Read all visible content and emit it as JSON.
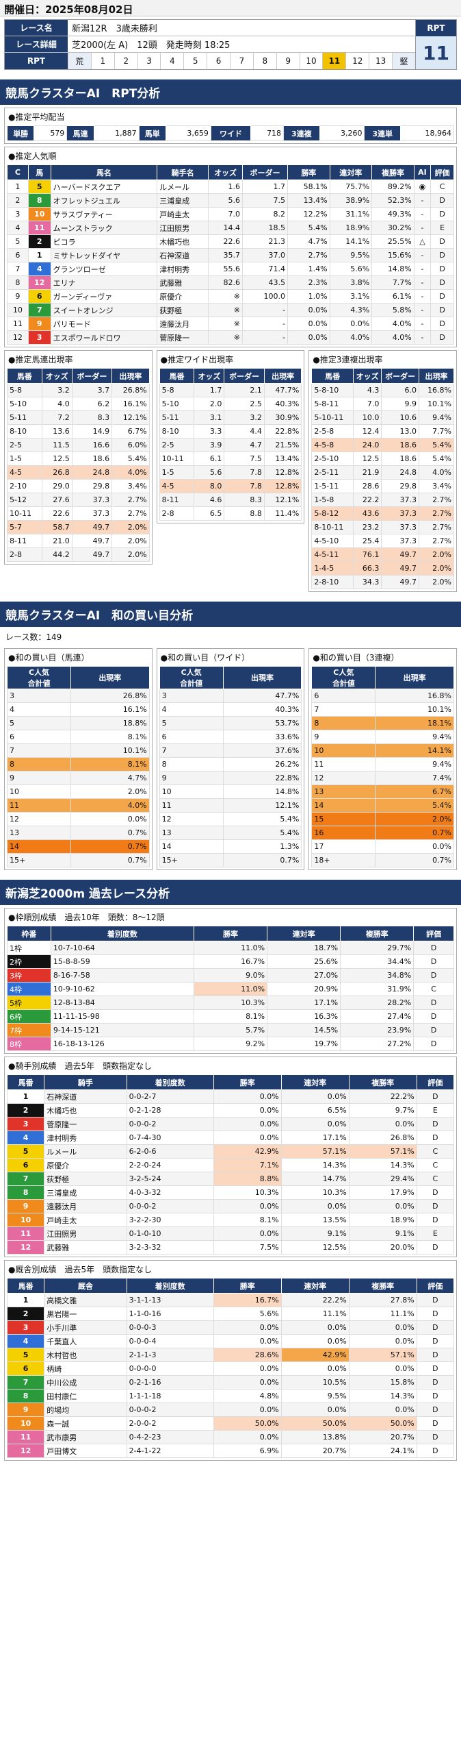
{
  "date_label": "開催日：2025年08月02日",
  "race": {
    "name_label": "レース名",
    "name": "新潟12R　3歳未勝利",
    "detail_label": "レース詳細",
    "detail": "芝2000(左 A)　12頭　発走時刻 18:25",
    "rpt_label": "RPT",
    "rpt_side_label": "RPT",
    "rpt_value": "11",
    "rpt_scale": [
      "荒",
      "1",
      "2",
      "3",
      "4",
      "5",
      "6",
      "7",
      "8",
      "9",
      "10",
      "11",
      "12",
      "13",
      "堅"
    ],
    "rpt_selected": "11"
  },
  "s1": {
    "title": "競馬クラスターAI　RPT分析",
    "payout_title": "●推定平均配当",
    "payout": [
      [
        "単勝",
        "579"
      ],
      [
        "馬連",
        "1,887"
      ],
      [
        "馬単",
        "3,659"
      ],
      [
        "ワイド",
        "718"
      ],
      [
        "3連複",
        "3,260"
      ],
      [
        "3連単",
        "18,964"
      ]
    ],
    "pop_title": "●推定人気順",
    "pop_headers": [
      "C",
      "馬",
      "馬名",
      "騎手名",
      "オッズ",
      "ボーダー",
      "勝率",
      "連対率",
      "複勝率",
      "AI",
      "評価"
    ],
    "pop_rows": [
      [
        "1",
        "5",
        "ハーバードスクエア",
        "ルメール",
        "1.6",
        "1.7",
        "58.1%",
        "75.7%",
        "89.2%",
        "◉",
        "C"
      ],
      [
        "2",
        "8",
        "オフレットジュエル",
        "三浦皇成",
        "5.6",
        "7.5",
        "13.4%",
        "38.9%",
        "52.3%",
        "-",
        "D"
      ],
      [
        "3",
        "10",
        "サラスヴァティー",
        "戸崎圭太",
        "7.0",
        "8.2",
        "12.2%",
        "31.1%",
        "49.3%",
        "-",
        "D"
      ],
      [
        "4",
        "11",
        "ムーンストラック",
        "江田照男",
        "14.4",
        "18.5",
        "5.4%",
        "18.9%",
        "30.2%",
        "-",
        "E"
      ],
      [
        "5",
        "2",
        "ピコラ",
        "木幡巧也",
        "22.6",
        "21.3",
        "4.7%",
        "14.1%",
        "25.5%",
        "△",
        "D"
      ],
      [
        "6",
        "1",
        "ミサトレッドダイヤ",
        "石神深道",
        "35.7",
        "37.0",
        "2.7%",
        "9.5%",
        "15.6%",
        "-",
        "D"
      ],
      [
        "7",
        "4",
        "グランツローゼ",
        "津村明秀",
        "55.6",
        "71.4",
        "1.4%",
        "5.6%",
        "14.8%",
        "-",
        "D"
      ],
      [
        "8",
        "12",
        "エリナ",
        "武藤雅",
        "82.6",
        "43.5",
        "2.3%",
        "3.8%",
        "7.7%",
        "-",
        "D"
      ],
      [
        "9",
        "6",
        "ガーンディーヴァ",
        "原優介",
        "※",
        "100.0",
        "1.0%",
        "3.1%",
        "6.1%",
        "-",
        "D"
      ],
      [
        "10",
        "7",
        "スイートオレンジ",
        "荻野極",
        "※",
        "-",
        "0.0%",
        "4.3%",
        "5.8%",
        "-",
        "D"
      ],
      [
        "11",
        "9",
        "パリモード",
        "遠藤汰月",
        "※",
        "-",
        "0.0%",
        "0.0%",
        "4.0%",
        "-",
        "D"
      ],
      [
        "12",
        "3",
        "エスポワールドロワ",
        "菅原隆一",
        "※",
        "-",
        "0.0%",
        "4.0%",
        "4.0%",
        "-",
        "D"
      ]
    ],
    "t_umaren": {
      "title": "●推定馬連出現率",
      "headers": [
        "馬番",
        "オッズ",
        "ボーダー",
        "出現率"
      ],
      "rows": [
        [
          "5-8",
          "3.2",
          "3.7",
          "26.8%"
        ],
        [
          "5-10",
          "4.0",
          "6.2",
          "16.1%"
        ],
        [
          "5-11",
          "7.2",
          "8.3",
          "12.1%"
        ],
        [
          "8-10",
          "13.6",
          "14.9",
          "6.7%"
        ],
        [
          "2-5",
          "11.5",
          "16.6",
          "6.0%"
        ],
        [
          "1-5",
          "12.5",
          "18.6",
          "5.4%"
        ],
        [
          "4-5",
          "26.8",
          "24.8",
          "4.0%"
        ],
        [
          "2-10",
          "29.0",
          "29.8",
          "3.4%"
        ],
        [
          "5-12",
          "27.6",
          "37.3",
          "2.7%"
        ],
        [
          "10-11",
          "22.6",
          "37.3",
          "2.7%"
        ],
        [
          "5-7",
          "58.7",
          "49.7",
          "2.0%"
        ],
        [
          "8-11",
          "21.0",
          "49.7",
          "2.0%"
        ],
        [
          "2-8",
          "44.2",
          "49.7",
          "2.0%"
        ]
      ]
    },
    "t_wide": {
      "title": "●推定ワイド出現率",
      "headers": [
        "馬番",
        "オッズ",
        "ボーダー",
        "出現率"
      ],
      "rows": [
        [
          "5-8",
          "1.7",
          "2.1",
          "47.7%"
        ],
        [
          "5-10",
          "2.0",
          "2.5",
          "40.3%"
        ],
        [
          "5-11",
          "3.1",
          "3.2",
          "30.9%"
        ],
        [
          "8-10",
          "3.3",
          "4.4",
          "22.8%"
        ],
        [
          "2-5",
          "3.9",
          "4.7",
          "21.5%"
        ],
        [
          "10-11",
          "6.1",
          "7.5",
          "13.4%"
        ],
        [
          "1-5",
          "5.6",
          "7.8",
          "12.8%"
        ],
        [
          "4-5",
          "8.0",
          "7.8",
          "12.8%"
        ],
        [
          "8-11",
          "4.6",
          "8.3",
          "12.1%"
        ],
        [
          "2-8",
          "6.5",
          "8.8",
          "11.4%"
        ]
      ]
    },
    "t_trio": {
      "title": "●推定3連複出現率",
      "headers": [
        "馬番",
        "オッズ",
        "ボーダー",
        "出現率"
      ],
      "rows": [
        [
          "5-8-10",
          "4.3",
          "6.0",
          "16.8%"
        ],
        [
          "5-8-11",
          "7.0",
          "9.9",
          "10.1%"
        ],
        [
          "5-10-11",
          "10.0",
          "10.6",
          "9.4%"
        ],
        [
          "2-5-8",
          "12.4",
          "13.0",
          "7.7%"
        ],
        [
          "4-5-8",
          "24.0",
          "18.6",
          "5.4%"
        ],
        [
          "2-5-10",
          "12.5",
          "18.6",
          "5.4%"
        ],
        [
          "2-5-11",
          "21.9",
          "24.8",
          "4.0%"
        ],
        [
          "1-5-11",
          "28.6",
          "29.8",
          "3.4%"
        ],
        [
          "1-5-8",
          "22.2",
          "37.3",
          "2.7%"
        ],
        [
          "5-8-12",
          "43.6",
          "37.3",
          "2.7%"
        ],
        [
          "8-10-11",
          "23.2",
          "37.3",
          "2.7%"
        ],
        [
          "4-5-10",
          "25.4",
          "37.3",
          "2.7%"
        ],
        [
          "4-5-11",
          "76.1",
          "49.7",
          "2.0%"
        ],
        [
          "1-4-5",
          "66.3",
          "49.7",
          "2.0%"
        ],
        [
          "2-8-10",
          "34.3",
          "49.7",
          "2.0%"
        ]
      ]
    }
  },
  "s2": {
    "title": "競馬クラスターAI　和の買い目分析",
    "count": "レース数：149",
    "t1": {
      "title": "●和の買い目（馬連）",
      "headers": [
        "C人気\n合計値",
        "出現率"
      ],
      "rows": [
        [
          "3",
          "26.8%"
        ],
        [
          "4",
          "16.1%"
        ],
        [
          "5",
          "18.8%"
        ],
        [
          "6",
          "8.1%"
        ],
        [
          "7",
          "10.1%"
        ],
        [
          "8",
          "8.1%"
        ],
        [
          "9",
          "4.7%"
        ],
        [
          "10",
          "2.0%"
        ],
        [
          "11",
          "4.0%"
        ],
        [
          "12",
          "0.0%"
        ],
        [
          "13",
          "0.7%"
        ],
        [
          "14",
          "0.7%"
        ],
        [
          "15+",
          "0.7%"
        ]
      ]
    },
    "t2": {
      "title": "●和の買い目（ワイド）",
      "headers": [
        "C人気\n合計値",
        "出現率"
      ],
      "rows": [
        [
          "3",
          "47.7%"
        ],
        [
          "4",
          "40.3%"
        ],
        [
          "5",
          "53.7%"
        ],
        [
          "6",
          "33.6%"
        ],
        [
          "7",
          "37.6%"
        ],
        [
          "8",
          "26.2%"
        ],
        [
          "9",
          "22.8%"
        ],
        [
          "10",
          "14.8%"
        ],
        [
          "11",
          "12.1%"
        ],
        [
          "12",
          "5.4%"
        ],
        [
          "13",
          "5.4%"
        ],
        [
          "14",
          "1.3%"
        ],
        [
          "15+",
          "0.7%"
        ]
      ]
    },
    "t3": {
      "title": "●和の買い目（3連複）",
      "headers": [
        "C人気\n合計値",
        "出現率"
      ],
      "rows": [
        [
          "6",
          "16.8%"
        ],
        [
          "7",
          "10.1%"
        ],
        [
          "8",
          "18.1%"
        ],
        [
          "9",
          "9.4%"
        ],
        [
          "10",
          "14.1%"
        ],
        [
          "11",
          "9.4%"
        ],
        [
          "12",
          "7.4%"
        ],
        [
          "13",
          "6.7%"
        ],
        [
          "14",
          "5.4%"
        ],
        [
          "15",
          "2.0%"
        ],
        [
          "16",
          "0.7%"
        ],
        [
          "17",
          "0.0%"
        ],
        [
          "18+",
          "0.7%"
        ]
      ]
    }
  },
  "s3": {
    "title": "新潟芝2000m 過去レース分析",
    "frame": {
      "title": "●枠順別成績　過去10年　頭数：8～12頭",
      "headers": [
        "枠番",
        "着別度数",
        "勝率",
        "連対率",
        "複勝率",
        "評価"
      ],
      "rows": [
        [
          "1枠",
          "10-7-10-64",
          "11.0%",
          "18.7%",
          "29.7%",
          "D"
        ],
        [
          "2枠",
          "15-8-8-59",
          "16.7%",
          "25.6%",
          "34.4%",
          "D"
        ],
        [
          "3枠",
          "8-16-7-58",
          "9.0%",
          "27.0%",
          "34.8%",
          "D"
        ],
        [
          "4枠",
          "10-9-10-62",
          "11.0%",
          "20.9%",
          "31.9%",
          "C"
        ],
        [
          "5枠",
          "12-8-13-84",
          "10.3%",
          "17.1%",
          "28.2%",
          "D"
        ],
        [
          "6枠",
          "11-11-15-98",
          "8.1%",
          "16.3%",
          "27.4%",
          "D"
        ],
        [
          "7枠",
          "9-14-15-121",
          "5.7%",
          "14.5%",
          "23.9%",
          "D"
        ],
        [
          "8枠",
          "16-18-13-126",
          "9.2%",
          "19.7%",
          "27.2%",
          "D"
        ]
      ]
    },
    "jockey": {
      "title": "●騎手別成績　過去5年　頭数指定なし",
      "headers": [
        "馬番",
        "騎手",
        "着別度数",
        "勝率",
        "連対率",
        "複勝率",
        "評価"
      ],
      "rows": [
        [
          "1",
          "石神深道",
          "0-0-2-7",
          "0.0%",
          "0.0%",
          "22.2%",
          "D"
        ],
        [
          "2",
          "木幡巧也",
          "0-2-1-28",
          "0.0%",
          "6.5%",
          "9.7%",
          "E"
        ],
        [
          "3",
          "菅原隆一",
          "0-0-0-2",
          "0.0%",
          "0.0%",
          "0.0%",
          "D"
        ],
        [
          "4",
          "津村明秀",
          "0-7-4-30",
          "0.0%",
          "17.1%",
          "26.8%",
          "D"
        ],
        [
          "5",
          "ルメール",
          "6-2-0-6",
          "42.9%",
          "57.1%",
          "57.1%",
          "C"
        ],
        [
          "6",
          "原優介",
          "2-2-0-24",
          "7.1%",
          "14.3%",
          "14.3%",
          "C"
        ],
        [
          "7",
          "荻野極",
          "3-2-5-24",
          "8.8%",
          "14.7%",
          "29.4%",
          "C"
        ],
        [
          "8",
          "三浦皇成",
          "4-0-3-32",
          "10.3%",
          "10.3%",
          "17.9%",
          "D"
        ],
        [
          "9",
          "遠藤汰月",
          "0-0-0-2",
          "0.0%",
          "0.0%",
          "0.0%",
          "D"
        ],
        [
          "10",
          "戸崎圭太",
          "3-2-2-30",
          "8.1%",
          "13.5%",
          "18.9%",
          "D"
        ],
        [
          "11",
          "江田照男",
          "0-1-0-10",
          "0.0%",
          "9.1%",
          "9.1%",
          "E"
        ],
        [
          "12",
          "武藤雅",
          "3-2-3-32",
          "7.5%",
          "12.5%",
          "20.0%",
          "D"
        ]
      ]
    },
    "trainer": {
      "title": "●厩舎別成績　過去5年　頭数指定なし",
      "headers": [
        "馬番",
        "厩舎",
        "着別度数",
        "勝率",
        "連対率",
        "複勝率",
        "評価"
      ],
      "rows": [
        [
          "1",
          "高橋文雅",
          "3-1-1-13",
          "16.7%",
          "22.2%",
          "27.8%",
          "D"
        ],
        [
          "2",
          "黒岩陽一",
          "1-1-0-16",
          "5.6%",
          "11.1%",
          "11.1%",
          "D"
        ],
        [
          "3",
          "小手川準",
          "0-0-0-3",
          "0.0%",
          "0.0%",
          "0.0%",
          "D"
        ],
        [
          "4",
          "千葉直人",
          "0-0-0-4",
          "0.0%",
          "0.0%",
          "0.0%",
          "D"
        ],
        [
          "5",
          "木村哲也",
          "2-1-1-3",
          "28.6%",
          "42.9%",
          "57.1%",
          "D"
        ],
        [
          "6",
          "柄崎",
          "0-0-0-0",
          "0.0%",
          "0.0%",
          "0.0%",
          "D"
        ],
        [
          "7",
          "中川公成",
          "0-2-1-16",
          "0.0%",
          "10.5%",
          "15.8%",
          "D"
        ],
        [
          "8",
          "田村康仁",
          "1-1-1-18",
          "4.8%",
          "9.5%",
          "14.3%",
          "D"
        ],
        [
          "9",
          "的場均",
          "0-0-0-2",
          "0.0%",
          "0.0%",
          "0.0%",
          "D"
        ],
        [
          "10",
          "森一誠",
          "2-0-0-2",
          "50.0%",
          "50.0%",
          "50.0%",
          "D"
        ],
        [
          "11",
          "武市康男",
          "0-4-2-23",
          "0.0%",
          "13.8%",
          "20.7%",
          "D"
        ],
        [
          "12",
          "戸田博文",
          "2-4-1-22",
          "6.9%",
          "20.7%",
          "24.1%",
          "D"
        ]
      ]
    }
  }
}
